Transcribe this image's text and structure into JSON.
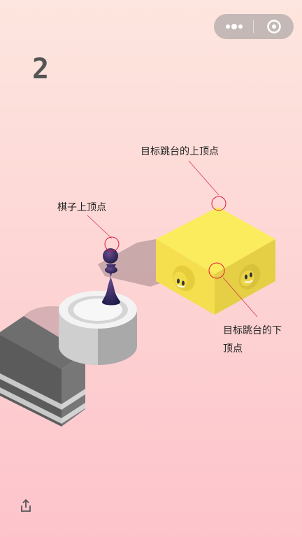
{
  "window": {
    "menu_icon": "more-dots-icon",
    "close_icon": "target-circle-icon"
  },
  "game": {
    "score": "2"
  },
  "annotations": {
    "target_top_vertex": "目标跳台的上顶点",
    "piece_top_vertex": "棋子上顶点",
    "target_bottom_vertex_line1": "目标跳台的下",
    "target_bottom_vertex_line2": "顶点"
  },
  "colors": {
    "background_top": "#fde6df",
    "background_bottom": "#fdc3cb",
    "target_box": "#f7e34e",
    "annotation_circle": "#e0193a",
    "piece": "#2c2a5e",
    "score_text": "#555555"
  },
  "footer": {
    "share_icon": "share-icon"
  }
}
